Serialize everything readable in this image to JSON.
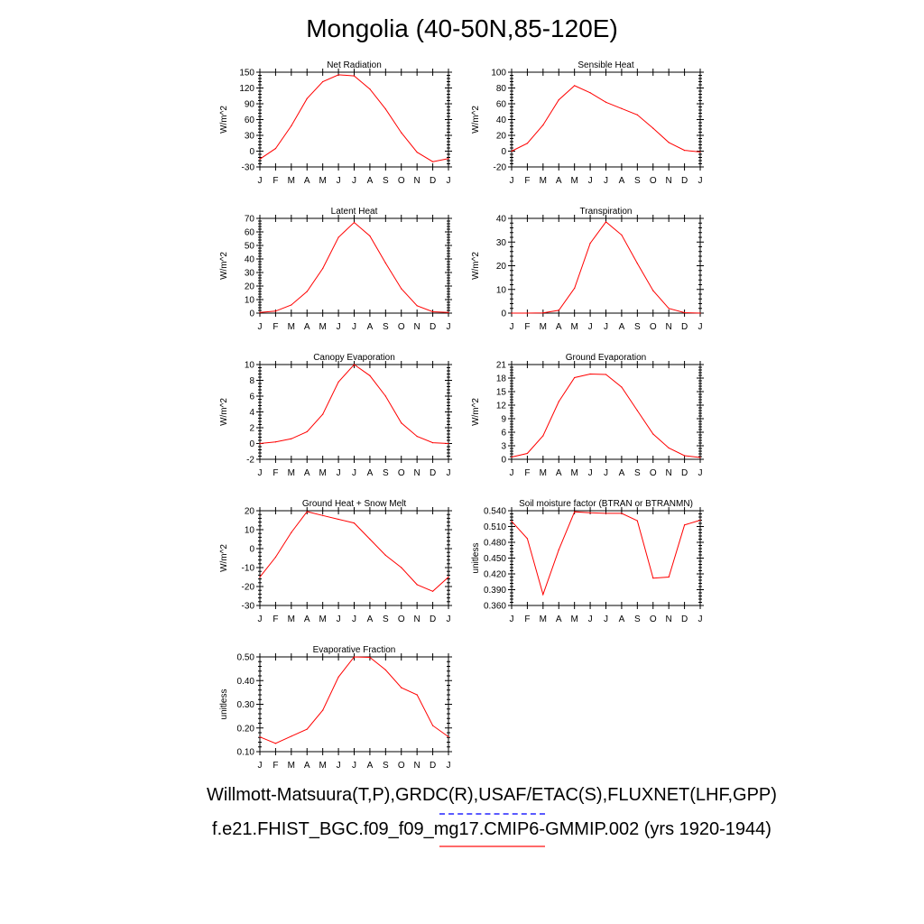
{
  "page": {
    "title": "Mongolia (40-50N,85-120E)",
    "footer_obs": "Willmott-Matsuura(T,P),GRDC(R),USAF/ETAC(S),FLUXNET(LHF,GPP)",
    "footer_model": "f.e21.FHIST_BGC.f09_f09_mg17.CMIP6-GMMIP.002 (yrs 1920-1944)"
  },
  "colors": {
    "model_line": "#ff0000",
    "obs_legend": "#5a5aff",
    "model_legend": "#ff6a6a"
  },
  "chart_data": [
    {
      "type": "line",
      "title": "Net Radiation",
      "ylabel": "W/m^2",
      "categories": [
        "J",
        "F",
        "M",
        "A",
        "M",
        "J",
        "J",
        "A",
        "S",
        "O",
        "N",
        "D",
        "J"
      ],
      "ylim": [
        -30,
        150
      ],
      "yticks": [
        -30,
        0,
        30,
        60,
        90,
        120,
        150
      ],
      "ytick_labels": [
        "-30",
        "0",
        "30",
        "60",
        "90",
        "120",
        "150"
      ],
      "series": [
        {
          "values": [
            -15,
            5,
            48,
            100,
            132,
            145,
            143,
            118,
            80,
            35,
            -2,
            -20,
            -14
          ]
        }
      ]
    },
    {
      "type": "line",
      "title": "Sensible Heat",
      "ylabel": "W/m^2",
      "categories": [
        "J",
        "F",
        "M",
        "A",
        "M",
        "J",
        "J",
        "A",
        "S",
        "O",
        "N",
        "D",
        "J"
      ],
      "ylim": [
        -20,
        100
      ],
      "yticks": [
        -20,
        0,
        20,
        40,
        60,
        80,
        100
      ],
      "ytick_labels": [
        "-20",
        "0",
        "20",
        "40",
        "60",
        "80",
        "100"
      ],
      "series": [
        {
          "values": [
            0,
            10,
            33,
            65,
            83,
            74,
            62,
            54,
            46,
            29,
            11,
            1,
            -1
          ]
        }
      ]
    },
    {
      "type": "line",
      "title": "Latent Heat",
      "ylabel": "W/m^2",
      "categories": [
        "J",
        "F",
        "M",
        "A",
        "M",
        "J",
        "J",
        "A",
        "S",
        "O",
        "N",
        "D",
        "J"
      ],
      "ylim": [
        0,
        70
      ],
      "yticks": [
        0,
        10,
        20,
        30,
        40,
        50,
        60,
        70
      ],
      "ytick_labels": [
        "0",
        "10",
        "20",
        "30",
        "40",
        "50",
        "60",
        "70"
      ],
      "series": [
        {
          "values": [
            0.5,
            1.5,
            6,
            16,
            33,
            56,
            67,
            57,
            37,
            18,
            5.5,
            1,
            0.5
          ]
        }
      ]
    },
    {
      "type": "line",
      "title": "Transpiration",
      "ylabel": "W/m^2",
      "categories": [
        "J",
        "F",
        "M",
        "A",
        "M",
        "J",
        "J",
        "A",
        "S",
        "O",
        "N",
        "D",
        "J"
      ],
      "ylim": [
        0,
        40
      ],
      "yticks": [
        0,
        10,
        20,
        30,
        40
      ],
      "ytick_labels": [
        "0",
        "10",
        "20",
        "30",
        "40"
      ],
      "series": [
        {
          "values": [
            0,
            0,
            0.1,
            1.2,
            10.5,
            29.5,
            38.5,
            33,
            21,
            9.5,
            2,
            0.2,
            0
          ]
        }
      ]
    },
    {
      "type": "line",
      "title": "Canopy Evaporation",
      "ylabel": "W/m^2",
      "categories": [
        "J",
        "F",
        "M",
        "A",
        "M",
        "J",
        "J",
        "A",
        "S",
        "O",
        "N",
        "D",
        "J"
      ],
      "ylim": [
        -2,
        10
      ],
      "yticks": [
        -2,
        0,
        2,
        4,
        6,
        8,
        10
      ],
      "ytick_labels": [
        "-2",
        "0",
        "2",
        "4",
        "6",
        "8",
        "10"
      ],
      "series": [
        {
          "values": [
            0,
            0.2,
            0.6,
            1.5,
            3.7,
            7.8,
            10,
            8.6,
            6,
            2.6,
            0.9,
            0.1,
            0
          ]
        }
      ]
    },
    {
      "type": "line",
      "title": "Ground Evaporation",
      "ylabel": "W/m^2",
      "categories": [
        "J",
        "F",
        "M",
        "A",
        "M",
        "J",
        "J",
        "A",
        "S",
        "O",
        "N",
        "D",
        "J"
      ],
      "ylim": [
        0,
        21
      ],
      "yticks": [
        0,
        3,
        6,
        9,
        12,
        15,
        18,
        21
      ],
      "ytick_labels": [
        "0",
        "3",
        "6",
        "9",
        "12",
        "15",
        "18",
        "21"
      ],
      "series": [
        {
          "values": [
            0.5,
            1.3,
            5.2,
            12.8,
            18.1,
            18.9,
            18.8,
            16,
            10.8,
            5.6,
            2.5,
            0.8,
            0.4
          ]
        }
      ]
    },
    {
      "type": "line",
      "title": "Ground Heat + Snow Melt",
      "ylabel": "W/m^2",
      "categories": [
        "J",
        "F",
        "M",
        "A",
        "M",
        "J",
        "J",
        "A",
        "S",
        "O",
        "N",
        "D",
        "J"
      ],
      "ylim": [
        -30,
        20
      ],
      "yticks": [
        -30,
        -20,
        -10,
        0,
        10,
        20
      ],
      "ytick_labels": [
        "-30",
        "-20",
        "-10",
        "0",
        "10",
        "20"
      ],
      "series": [
        {
          "values": [
            -15,
            -4.5,
            8.5,
            19.5,
            17.5,
            15.5,
            13.5,
            5,
            -3.5,
            -10,
            -19,
            -22.5,
            -15
          ]
        }
      ]
    },
    {
      "type": "line",
      "title": "Soil moisture factor (BTRAN or BTRANMN)",
      "ylabel": "unitless",
      "categories": [
        "J",
        "F",
        "M",
        "A",
        "M",
        "J",
        "J",
        "A",
        "S",
        "O",
        "N",
        "D",
        "J"
      ],
      "ylim": [
        0.36,
        0.54
      ],
      "yticks": [
        0.36,
        0.39,
        0.42,
        0.45,
        0.48,
        0.51,
        0.54
      ],
      "ytick_labels": [
        "0.360",
        "0.390",
        "0.420",
        "0.450",
        "0.480",
        "0.510",
        "0.540"
      ],
      "series": [
        {
          "values": [
            0.52,
            0.487,
            0.381,
            0.466,
            0.538,
            0.536,
            0.535,
            0.535,
            0.521,
            0.412,
            0.414,
            0.513,
            0.522
          ]
        }
      ]
    },
    {
      "type": "line",
      "title": "Evaporative Fraction",
      "ylabel": "unitless",
      "categories": [
        "J",
        "F",
        "M",
        "A",
        "M",
        "J",
        "J",
        "A",
        "S",
        "O",
        "N",
        "D",
        "J"
      ],
      "ylim": [
        0.1,
        0.5
      ],
      "yticks": [
        0.1,
        0.2,
        0.3,
        0.4,
        0.5
      ],
      "ytick_labels": [
        "0.10",
        "0.20",
        "0.30",
        "0.40",
        "0.50"
      ],
      "series": [
        {
          "values": [
            0.162,
            0.135,
            0.165,
            0.195,
            0.275,
            0.415,
            0.5,
            0.498,
            0.445,
            0.37,
            0.34,
            0.21,
            0.163
          ]
        }
      ]
    }
  ]
}
